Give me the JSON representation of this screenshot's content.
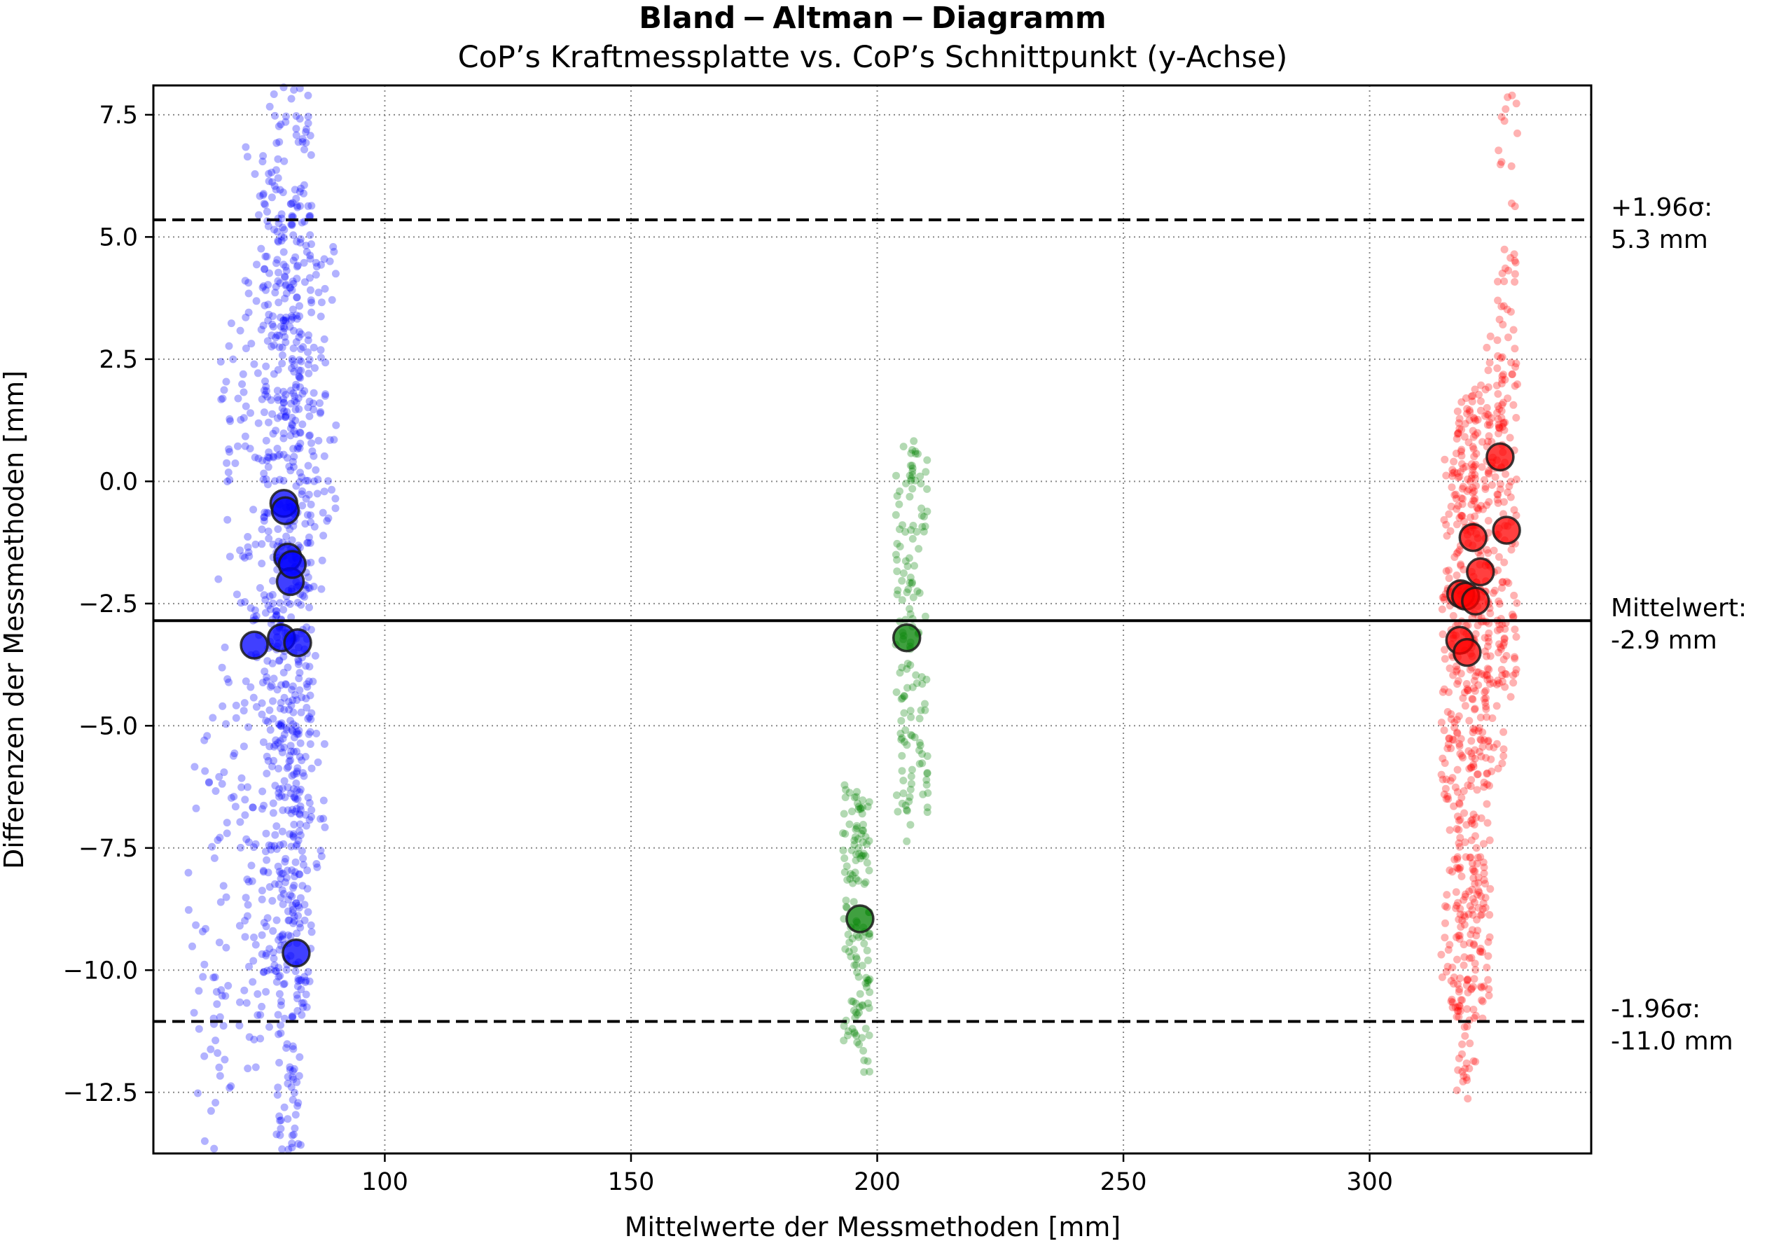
{
  "chart_data": {
    "type": "scatter",
    "title": "Bland − Altman − Diagramm",
    "subtitle": "CoP’s Kraftmessplatte vs. CoP’s Schnittpunkt (y-Achse)",
    "xlabel": "Mittelwerte der Messmethoden [mm]",
    "ylabel": "Differenzen der Messmethoden [mm]",
    "xlim": [
      53,
      345
    ],
    "ylim": [
      -13.75,
      8.1
    ],
    "xticks": [
      100,
      150,
      200,
      250,
      300
    ],
    "xtick_labels": [
      "100",
      "150",
      "200",
      "250",
      "300"
    ],
    "yticks": [
      -12.5,
      -10.0,
      -7.5,
      -5.0,
      -2.5,
      0.0,
      2.5,
      5.0,
      7.5
    ],
    "ytick_labels": [
      "−12.5",
      "−10.0",
      "−7.5",
      "−5.0",
      "−2.5",
      "0.0",
      "2.5",
      "5.0",
      "7.5"
    ],
    "grid": true,
    "reference_lines": [
      {
        "y": 5.35,
        "style": "dashed",
        "label_line1": "+1.96σ:",
        "label_line2": "5.3 mm"
      },
      {
        "y": -2.85,
        "style": "solid",
        "label_line1": "Mittelwert:",
        "label_line2": "-2.9 mm"
      },
      {
        "y": -11.05,
        "style": "dashed",
        "label_line1": "-1.96σ:",
        "label_line2": "-11.0 mm"
      }
    ],
    "series": [
      {
        "color": "#0000ff",
        "means": [
          [
            73.5,
            -3.35
          ],
          [
            79.5,
            -0.45
          ],
          [
            79.8,
            -0.6
          ],
          [
            80.3,
            -1.55
          ],
          [
            80.8,
            -2.05
          ],
          [
            81.2,
            -1.7
          ],
          [
            79.0,
            -3.2
          ],
          [
            82.3,
            -3.3
          ],
          [
            82.0,
            -9.65
          ]
        ],
        "clouds": [
          {
            "x": 64,
            "x_spread": 4,
            "y_min": -13.7,
            "y_max": -4.8,
            "n": 45
          },
          {
            "x": 70,
            "x_spread": 4,
            "y_min": -12.5,
            "y_max": 3.5,
            "n": 95
          },
          {
            "x": 74.5,
            "x_spread": 3,
            "y_min": -11.5,
            "y_max": 7.0,
            "n": 110
          },
          {
            "x": 77.5,
            "x_spread": 2.5,
            "y_min": -10.5,
            "y_max": 8.1,
            "n": 210
          },
          {
            "x": 80.5,
            "x_spread": 2.5,
            "y_min": -13.7,
            "y_max": 6.0,
            "n": 300
          },
          {
            "x": 83.0,
            "x_spread": 2.2,
            "y_min": -11.0,
            "y_max": 8.1,
            "n": 240
          },
          {
            "x": 86.0,
            "x_spread": 2.0,
            "y_min": -8.0,
            "y_max": 4.5,
            "n": 70
          },
          {
            "x": 89.0,
            "x_spread": 1.5,
            "y_min": -1.5,
            "y_max": 4.8,
            "n": 20
          }
        ]
      },
      {
        "color": "#008000",
        "means": [
          [
            196.5,
            -8.95
          ],
          [
            206.0,
            -3.2
          ]
        ],
        "clouds": [
          {
            "x": 194.5,
            "x_spread": 1.5,
            "y_min": -11.5,
            "y_max": -6.1,
            "n": 60
          },
          {
            "x": 197.0,
            "x_spread": 1.5,
            "y_min": -12.1,
            "y_max": -6.5,
            "n": 80
          },
          {
            "x": 205.5,
            "x_spread": 1.8,
            "y_min": -7.5,
            "y_max": 0.9,
            "n": 90
          },
          {
            "x": 208.5,
            "x_spread": 1.8,
            "y_min": -6.8,
            "y_max": 0.9,
            "n": 60
          }
        ]
      },
      {
        "color": "#ff0000",
        "means": [
          [
            318.5,
            -2.3
          ],
          [
            319.5,
            -2.35
          ],
          [
            321.5,
            -2.45
          ],
          [
            318.3,
            -3.25
          ],
          [
            319.8,
            -3.5
          ],
          [
            321.0,
            -1.15
          ],
          [
            322.5,
            -1.85
          ],
          [
            327.8,
            -1.0
          ],
          [
            326.5,
            0.5
          ]
        ],
        "clouds": [
          {
            "x": 316.5,
            "x_spread": 2.0,
            "y_min": -10.8,
            "y_max": 0.5,
            "n": 120
          },
          {
            "x": 319.5,
            "x_spread": 2.0,
            "y_min": -12.7,
            "y_max": 1.8,
            "n": 230
          },
          {
            "x": 322.5,
            "x_spread": 2.0,
            "y_min": -11.0,
            "y_max": 2.0,
            "n": 200
          },
          {
            "x": 325.5,
            "x_spread": 2.0,
            "y_min": -6.0,
            "y_max": 3.0,
            "n": 110
          },
          {
            "x": 328.0,
            "x_spread": 2.0,
            "y_min": -4.5,
            "y_max": 7.9,
            "n": 110
          }
        ]
      }
    ]
  }
}
